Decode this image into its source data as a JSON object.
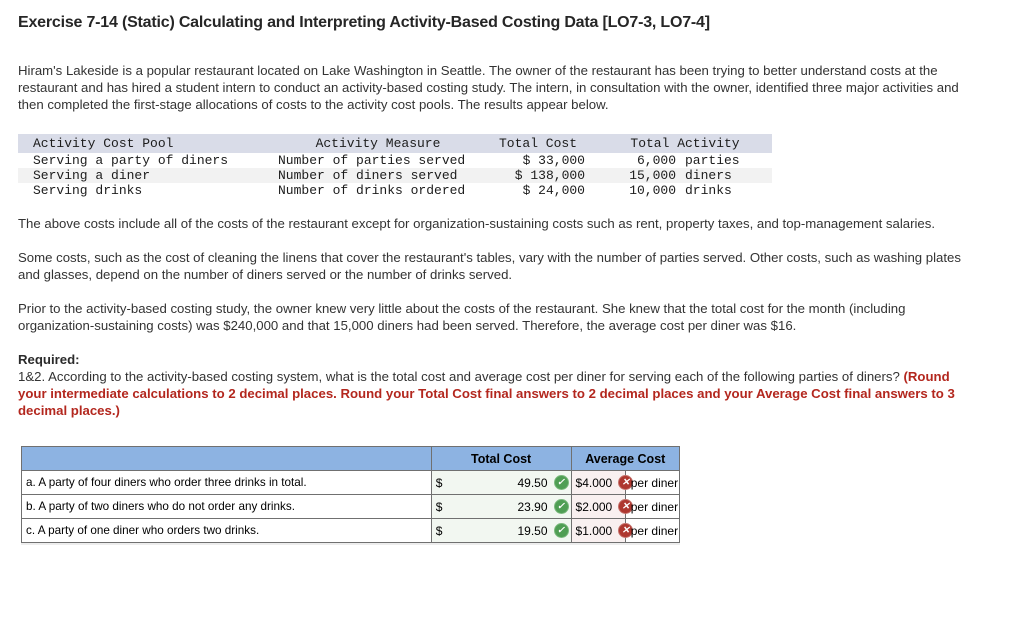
{
  "title": "Exercise 7-14 (Static) Calculating and Interpreting Activity-Based Costing Data [LO7-3, LO7-4]",
  "intro": "Hiram's Lakeside is a popular restaurant located on Lake Washington in Seattle. The owner of the restaurant has been trying to better understand costs at the restaurant and has hired a student intern to conduct an activity-based costing study. The intern, in consultation with the owner, identified three major activities and then completed the first-stage allocations of costs to the activity cost pools. The results appear below.",
  "cost_pool_table": {
    "headers": [
      "Activity Cost Pool",
      "Activity Measure",
      "Total Cost",
      "Total Activity"
    ],
    "rows": [
      {
        "pool": "Serving a party of diners",
        "measure": "Number of parties served",
        "cost": "$ 33,000",
        "activity_num": "6,000",
        "activity_unit": "parties"
      },
      {
        "pool": "Serving a diner",
        "measure": "Number of diners served",
        "cost": "$ 138,000",
        "activity_num": "15,000",
        "activity_unit": "diners"
      },
      {
        "pool": "Serving drinks",
        "measure": "Number of drinks ordered",
        "cost": "$ 24,000",
        "activity_num": "10,000",
        "activity_unit": "drinks"
      }
    ]
  },
  "para_above_costs": "The above costs include all of the costs of the restaurant except for organization-sustaining costs such as rent, property taxes, and top-management salaries.",
  "para_some_costs": "Some costs, such as the cost of cleaning the linens that cover the restaurant's tables, vary with the number of parties served. Other costs, such as washing plates and glasses, depend on the number of diners served or the number of drinks served.",
  "para_prior": "Prior to the activity-based costing study, the owner knew very little about the costs of the restaurant. She knew that the total cost for the month (including organization-sustaining costs) was $240,000 and that 15,000 diners had been served. Therefore, the average cost per diner was $16.",
  "required": {
    "label": "Required:",
    "question": "1&2. According to the activity-based costing system, what is the total cost and average cost per diner for serving each of the following parties of diners? ",
    "instruction": "(Round your intermediate calculations to 2 decimal places. Round your Total Cost final answers to 2 decimal places and your Average Cost final answers to 3 decimal places.)"
  },
  "answer_table": {
    "col_total_cost": "Total Cost",
    "col_average_cost": "Average Cost",
    "currency": "$",
    "unit": "per diner",
    "rows": [
      {
        "label": "a. A party of four diners who order three drinks in total.",
        "total_cost": "49.50",
        "total_status": "correct",
        "avg_cost": "4.000",
        "avg_status": "incorrect"
      },
      {
        "label": "b. A party of two diners who do not order any drinks.",
        "total_cost": "23.90",
        "total_status": "correct",
        "avg_cost": "2.000",
        "avg_status": "incorrect"
      },
      {
        "label": "c. A party of one diner who orders two drinks.",
        "total_cost": "19.50",
        "total_status": "correct",
        "avg_cost": "1.000",
        "avg_status": "incorrect"
      }
    ]
  },
  "icons": {
    "check": "✓",
    "cross": "✕"
  },
  "colors": {
    "answer_header_blue": "#8db3e2",
    "cost_header_gray_blue": "#d9dce8",
    "correct_green": "#4f9e54",
    "incorrect_red": "#ae372f",
    "instruction_red": "#b3271e",
    "total_cell_bg": "#f2f7f1",
    "avg_cell_bg": "#f9f0f0"
  }
}
